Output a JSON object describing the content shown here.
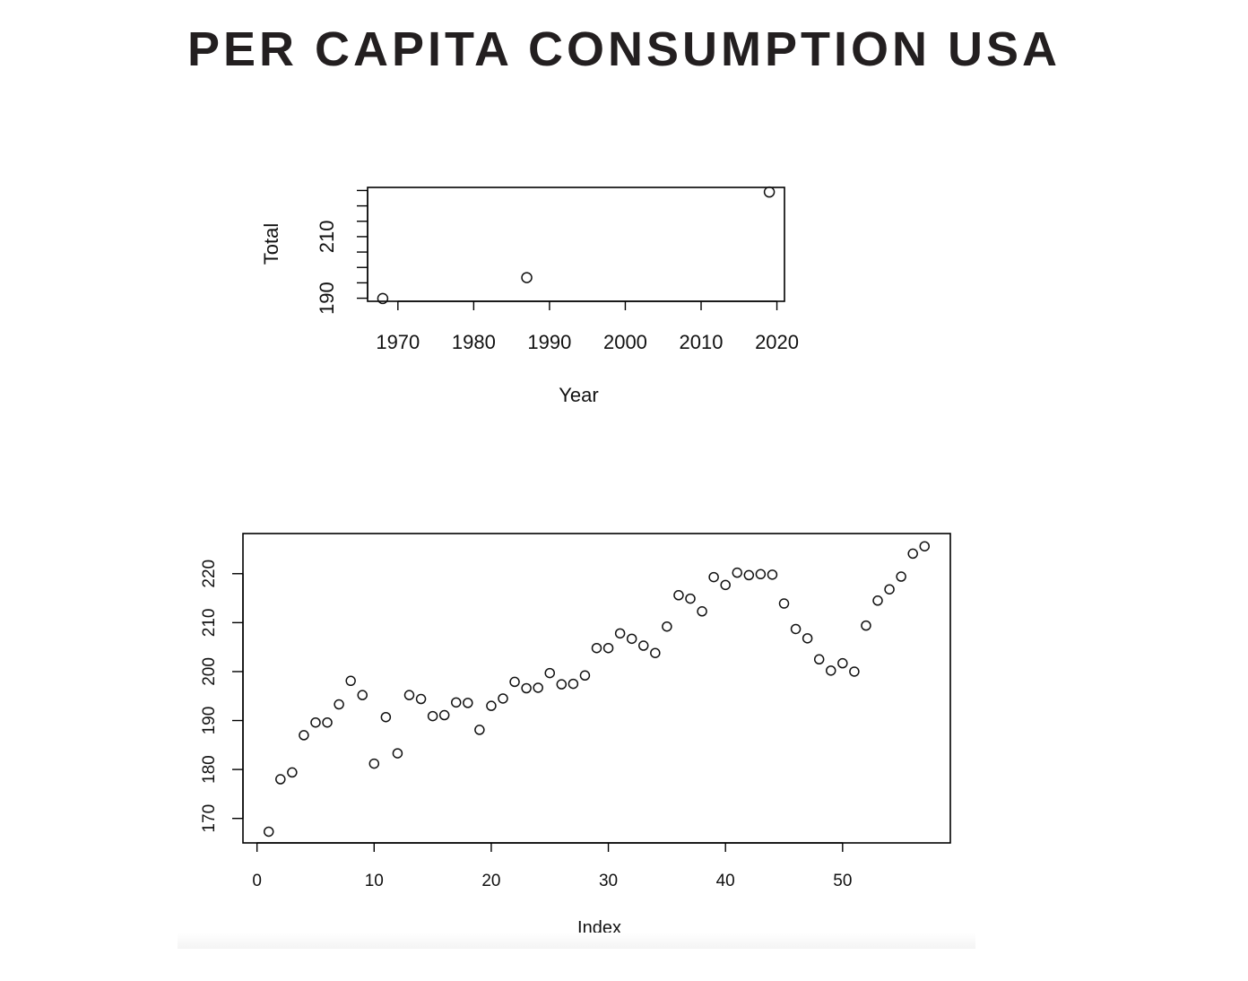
{
  "page": {
    "title": "PER CAPITA CONSUMPTION USA"
  },
  "chart_data": [
    {
      "type": "scatter",
      "xlabel": "Year",
      "ylabel": "Total",
      "xlim": [
        1966,
        2021
      ],
      "ylim": [
        189,
        226
      ],
      "x_ticks": [
        1970,
        1980,
        1990,
        2000,
        2010,
        2020
      ],
      "x_tick_labels": [
        "1970",
        "1980",
        "1990",
        "2000",
        "2010",
        "2020"
      ],
      "y_ticks": [
        190,
        195,
        200,
        205,
        210,
        215,
        220,
        225
      ],
      "y_tick_labels": [
        {
          "value": 190,
          "label": "190"
        },
        {
          "value": 210,
          "label": "210"
        }
      ],
      "grid": false,
      "points": [
        {
          "x": 1968,
          "y": 189.9
        },
        {
          "x": 1987,
          "y": 196.7
        },
        {
          "x": 2019,
          "y": 224.5
        }
      ]
    },
    {
      "type": "scatter",
      "xlabel": "Index",
      "ylabel": "",
      "xlim": [
        -1.2,
        59.2
      ],
      "ylim": [
        165,
        228.2
      ],
      "x_ticks": [
        0,
        10,
        20,
        30,
        40,
        50
      ],
      "x_tick_labels": [
        "0",
        "10",
        "20",
        "30",
        "40",
        "50"
      ],
      "y_ticks": [
        170,
        180,
        190,
        200,
        210,
        220
      ],
      "y_tick_labels": [
        {
          "value": 170,
          "label": "170"
        },
        {
          "value": 180,
          "label": "180"
        },
        {
          "value": 190,
          "label": "190"
        },
        {
          "value": 200,
          "label": "200"
        },
        {
          "value": 210,
          "label": "210"
        },
        {
          "value": 220,
          "label": "220"
        }
      ],
      "grid": false,
      "x": [
        1,
        2,
        3,
        4,
        5,
        6,
        7,
        8,
        9,
        10,
        11,
        12,
        13,
        14,
        15,
        16,
        17,
        18,
        19,
        20,
        21,
        22,
        23,
        24,
        25,
        26,
        27,
        28,
        29,
        30,
        31,
        32,
        33,
        34,
        35,
        36,
        37,
        38,
        39,
        40,
        41,
        42,
        43,
        44,
        45,
        46,
        47,
        48,
        49,
        50,
        51,
        52,
        53,
        54,
        55,
        56,
        57
      ],
      "values": [
        167.3,
        178.0,
        179.4,
        187.0,
        189.6,
        189.6,
        193.3,
        198.1,
        195.2,
        181.2,
        190.7,
        183.3,
        195.2,
        194.4,
        190.9,
        191.1,
        193.7,
        193.6,
        188.1,
        193.0,
        194.5,
        197.9,
        196.6,
        196.7,
        199.7,
        197.4,
        197.5,
        199.2,
        204.8,
        204.8,
        207.8,
        206.7,
        205.3,
        203.8,
        209.2,
        215.6,
        214.9,
        212.3,
        219.3,
        217.7,
        220.2,
        219.7,
        219.9,
        219.8,
        213.9,
        208.7,
        206.8,
        202.5,
        200.2,
        201.7,
        200.0,
        209.4,
        214.5,
        216.8,
        219.4,
        224.1,
        225.6
      ]
    }
  ]
}
